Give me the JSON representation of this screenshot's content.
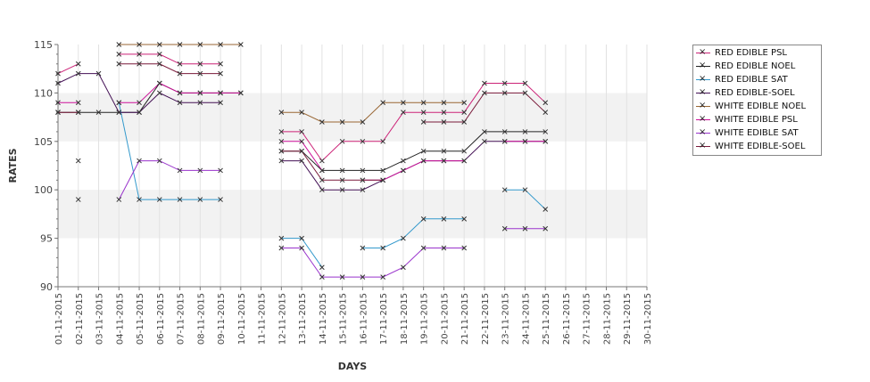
{
  "chart_data": {
    "type": "line",
    "xlabel": "DAYS",
    "ylabel": "RATES",
    "ylim": [
      90,
      115
    ],
    "yticks": [
      90,
      95,
      100,
      105,
      110,
      115
    ],
    "grid": "vertical lines per day; alternating horizontal bands",
    "legend_position": "right",
    "categories": [
      "01-11-2015",
      "02-11-2015",
      "03-11-2015",
      "04-11-2015",
      "05-11-2015",
      "06-11-2015",
      "07-11-2015",
      "08-11-2015",
      "09-11-2015",
      "10-11-2015",
      "11-11-2015",
      "12-11-2015",
      "13-11-2015",
      "14-11-2015",
      "15-11-2015",
      "16-11-2015",
      "17-11-2015",
      "18-11-2015",
      "19-11-2015",
      "20-11-2015",
      "21-11-2015",
      "22-11-2015",
      "23-11-2015",
      "24-11-2015",
      "25-11-2015",
      "26-11-2015",
      "27-11-2015",
      "28-11-2015",
      "29-11-2015",
      "30-11-2015"
    ],
    "series": [
      {
        "name": "RED EDIBLE  PSL",
        "color": "#cc2277",
        "values": [
          112,
          113,
          null,
          114,
          114,
          114,
          113,
          113,
          113,
          null,
          null,
          106,
          106,
          103,
          105,
          105,
          105,
          108,
          108,
          108,
          108,
          111,
          111,
          111,
          109,
          null,
          null,
          null,
          null,
          null
        ]
      },
      {
        "name": "RED EDIBLE NOEL",
        "color": "#222222",
        "values": [
          108,
          108,
          108,
          108,
          108,
          111,
          110,
          110,
          110,
          110,
          null,
          104,
          104,
          102,
          102,
          102,
          102,
          103,
          104,
          104,
          104,
          106,
          106,
          106,
          106,
          null,
          null,
          null,
          null,
          null
        ]
      },
      {
        "name": "RED EDIBLE SAT",
        "color": "#3399cc",
        "values": [
          null,
          103,
          null,
          109,
          99,
          99,
          99,
          99,
          99,
          null,
          null,
          95,
          95,
          92,
          null,
          94,
          94,
          95,
          97,
          97,
          97,
          null,
          100,
          100,
          98,
          null,
          null,
          null,
          null,
          null
        ]
      },
      {
        "name": "RED EDIBLE-SOEL",
        "color": "#441155",
        "values": [
          111,
          112,
          112,
          108,
          108,
          110,
          109,
          109,
          109,
          null,
          null,
          103,
          103,
          100,
          100,
          100,
          101,
          102,
          103,
          103,
          103,
          105,
          105,
          105,
          105,
          null,
          null,
          null,
          null,
          null
        ]
      },
      {
        "name": "WHITE EDIBLE NOEL",
        "color": "#996633",
        "values": [
          null,
          null,
          null,
          115,
          115,
          115,
          115,
          115,
          115,
          115,
          null,
          108,
          108,
          107,
          107,
          107,
          109,
          109,
          109,
          109,
          109,
          null,
          null,
          null,
          null,
          null,
          null,
          null,
          null,
          null
        ]
      },
      {
        "name": "WHITE EDIBLE PSL",
        "color": "#cc1199",
        "values": [
          109,
          109,
          null,
          109,
          109,
          111,
          110,
          110,
          110,
          110,
          null,
          105,
          105,
          102,
          null,
          101,
          101,
          102,
          103,
          103,
          103,
          null,
          105,
          105,
          105,
          null,
          null,
          null,
          null,
          null
        ]
      },
      {
        "name": "WHITE EDIBLE SAT",
        "color": "#9933cc",
        "values": [
          null,
          99,
          null,
          99,
          103,
          103,
          102,
          102,
          102,
          null,
          null,
          94,
          94,
          91,
          91,
          91,
          91,
          92,
          94,
          94,
          94,
          null,
          96,
          96,
          96,
          null,
          null,
          null,
          null,
          null
        ]
      },
      {
        "name": "WHITE EDIBLE-SOEL",
        "color": "#7a1a3a",
        "values": [
          108,
          108,
          null,
          113,
          113,
          113,
          112,
          112,
          112,
          null,
          null,
          104,
          104,
          101,
          101,
          101,
          101,
          null,
          107,
          107,
          107,
          110,
          110,
          110,
          108,
          null,
          null,
          null,
          null,
          null
        ]
      }
    ]
  }
}
